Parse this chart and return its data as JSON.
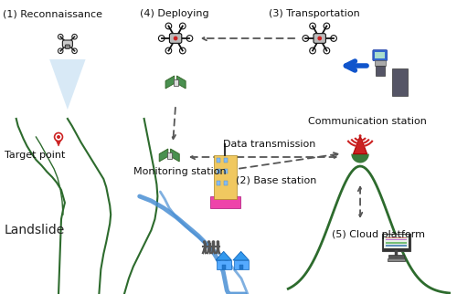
{
  "bg_color": "#ffffff",
  "landscape_color": "#2d6b2d",
  "river_color": "#4a8fd4",
  "labels": {
    "reconnaissance": "(1) Reconnaissance",
    "deploying": "(4) Deploying",
    "transportation": "(3) Transportation",
    "comm_station": "Communication station",
    "target_point": "Target point",
    "monitoring_station": "Monitoring station",
    "base_station": "(2) Base station",
    "data_transmission": "Data transmission",
    "landslide": "Landslide",
    "cloud_platform": "(5) Cloud platform"
  }
}
